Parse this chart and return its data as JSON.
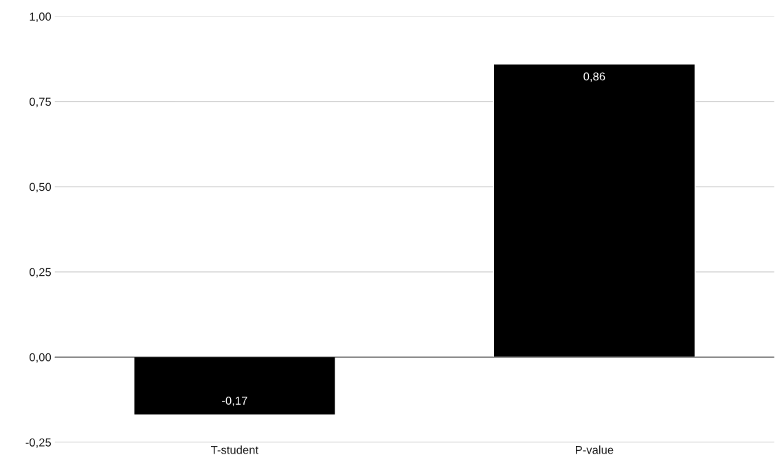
{
  "chart_data": {
    "type": "bar",
    "categories": [
      "T-student",
      "P-value"
    ],
    "series": [
      {
        "color": "#000000",
        "values": [
          -0.17,
          0.86
        ]
      }
    ],
    "value_labels": [
      "-0,17",
      "0,86"
    ],
    "ylim": [
      -0.25,
      1.0
    ],
    "yticks": [
      {
        "value": -0.25,
        "label": "-0,25"
      },
      {
        "value": 0,
        "label": "0,00"
      },
      {
        "value": 0.25,
        "label": "0,25"
      },
      {
        "value": 0.5,
        "label": "0,50"
      },
      {
        "value": 0.75,
        "label": "0,75"
      },
      {
        "value": 1.0,
        "label": "1,00"
      }
    ],
    "grid": "y",
    "legend": false
  }
}
